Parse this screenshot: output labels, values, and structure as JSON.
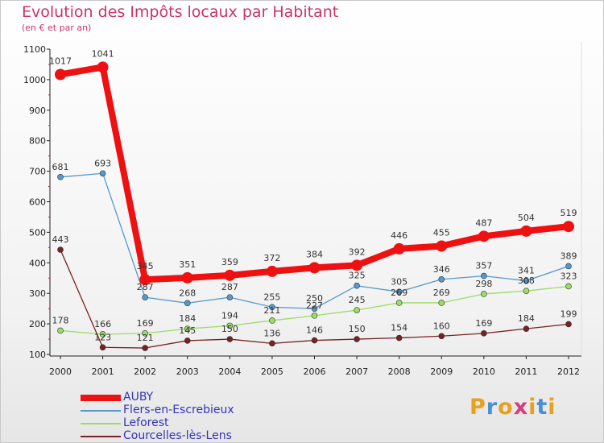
{
  "header": {
    "title": "Evolution des Impôts locaux par Habitant",
    "subtitle": "(en € et par an)"
  },
  "logo": {
    "text": "Proxiti",
    "colors": [
      "#e8a020",
      "#4a90d0",
      "#e8a020",
      "#d04080",
      "#e8a020",
      "#4a90d0",
      "#e8a020"
    ]
  },
  "chart_data": {
    "type": "line",
    "x": [
      "2000",
      "2001",
      "2002",
      "2003",
      "2004",
      "2005",
      "2006",
      "2007",
      "2008",
      "2009",
      "2010",
      "2011",
      "2012"
    ],
    "ylim": [
      100,
      1100
    ],
    "yticks": [
      "100",
      "200",
      "300",
      "400",
      "500",
      "600",
      "700",
      "800",
      "900",
      "1000",
      "1100"
    ],
    "grid": false,
    "legend_position": "bottom-left",
    "series": [
      {
        "name": "AUBY",
        "color": "#ee1111",
        "values": [
          1017,
          1041,
          345,
          351,
          359,
          372,
          384,
          392,
          446,
          455,
          487,
          504,
          519
        ]
      },
      {
        "name": "Flers-en-Escrebieux",
        "color": "#5599cc",
        "values": [
          681,
          693,
          287,
          268,
          287,
          255,
          250,
          325,
          305,
          346,
          357,
          341,
          389
        ]
      },
      {
        "name": "Leforest",
        "color": "#99dd66",
        "values": [
          178,
          166,
          169,
          184,
          194,
          211,
          227,
          245,
          269,
          269,
          298,
          308,
          323
        ]
      },
      {
        "name": "Courcelles-lès-Lens",
        "color": "#772222",
        "values": [
          443,
          123,
          121,
          145,
          150,
          136,
          146,
          150,
          154,
          160,
          169,
          184,
          199
        ]
      }
    ]
  }
}
